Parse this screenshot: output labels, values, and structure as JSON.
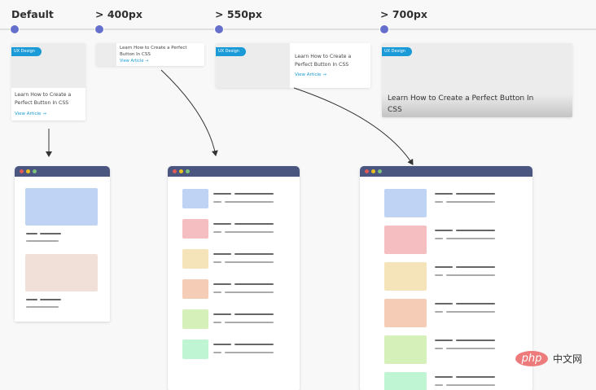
{
  "breakpoints": [
    {
      "label": "Default"
    },
    {
      "label": "> 400px"
    },
    {
      "label": "> 550px"
    },
    {
      "label": "> 700px"
    }
  ],
  "card": {
    "badge": "UX Design",
    "title": "Learn How to Create a Perfect Button In CSS",
    "link": "View Article",
    "link_icon": "arrow-right-icon"
  },
  "colors": {
    "dot": "#6670cc",
    "badge": "#1a9bd7",
    "titlebar": "#4a5680",
    "window_close": "#e05a5a",
    "window_min": "#e8c020",
    "window_max": "#7cc47c",
    "blocks": [
      "#bfd3f5",
      "#f5bfc1",
      "#f5e3b9",
      "#f5cdb6",
      "#d6f0b9",
      "#bff5d3"
    ],
    "beige": "#f0e0d8"
  },
  "watermark": {
    "logo": "php",
    "text": "中文网"
  }
}
